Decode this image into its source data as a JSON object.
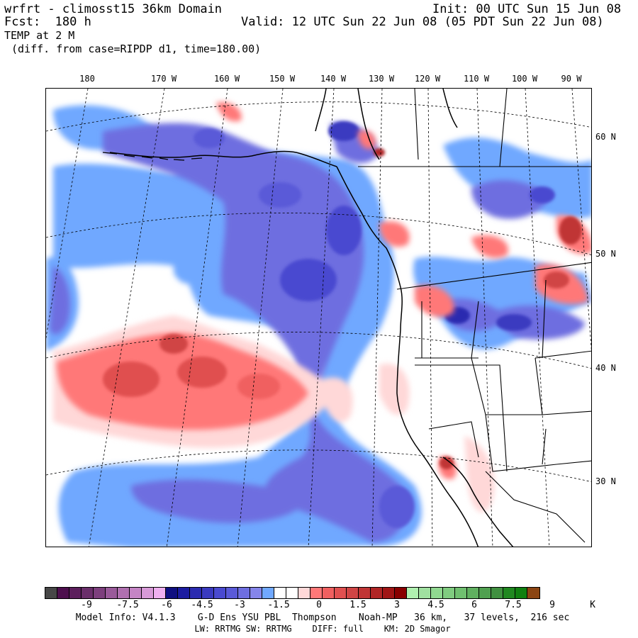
{
  "header": {
    "model_line": "wrfrt - climosst15 36km Domain",
    "init": "Init: 00 UTC Sun 15 Jun 08",
    "fcst": "Fcst:  180 h",
    "valid": "Valid: 12 UTC Sun 22 Jun 08 (05 PDT Sun 22 Jun 08)",
    "field": "TEMP at 2 M",
    "diff": "(diff. from case=RIPDP d1, time=180.00)"
  },
  "map": {
    "lon_labels": [
      "180",
      "170 W",
      "160 W",
      "150 W",
      "140 W",
      "130 W",
      "120 W",
      "110 W",
      "100 W",
      "90 W"
    ],
    "lat_labels": [
      "60 N",
      "50 N",
      "40 N",
      "30 N"
    ]
  },
  "colorbar": {
    "colors": [
      "#474747",
      "#4d0f4d",
      "#5c1f5c",
      "#6b2f6b",
      "#7d3f7d",
      "#9a5a9a",
      "#b070b0",
      "#c585c5",
      "#d89ad8",
      "#f0b0f0",
      "#0f0f80",
      "#1c1ca0",
      "#2b2bb0",
      "#3a3ac0",
      "#4a4ad0",
      "#5a5ad8",
      "#6e6ee0",
      "#8585ea",
      "#70a8ff",
      "#ffffff",
      "#ffffff",
      "#ffd8d8",
      "#ff7878",
      "#f06060",
      "#e05050",
      "#d04545",
      "#c03535",
      "#b02525",
      "#a01515",
      "#880000",
      "#b0f0b0",
      "#a0e0a0",
      "#90d890",
      "#80cc80",
      "#70c070",
      "#60b060",
      "#50a050",
      "#409040",
      "#208820",
      "#108010",
      "#8b4513"
    ],
    "labels": [
      "-9",
      "-7.5",
      "-6",
      "-4.5",
      "-3",
      "-1.5",
      "0",
      "1.5",
      "3",
      "4.5",
      "6",
      "7.5",
      "9"
    ],
    "unit": "K"
  },
  "footer": {
    "line1": "Model Info: V4.1.3    G-D Ens YSU PBL  Thompson    Noah-MP   36 km,   37 levels,  216 sec",
    "line2": "LW: RRTMG SW: RRTMG    DIFF: full    KM: 2D Smagor"
  }
}
